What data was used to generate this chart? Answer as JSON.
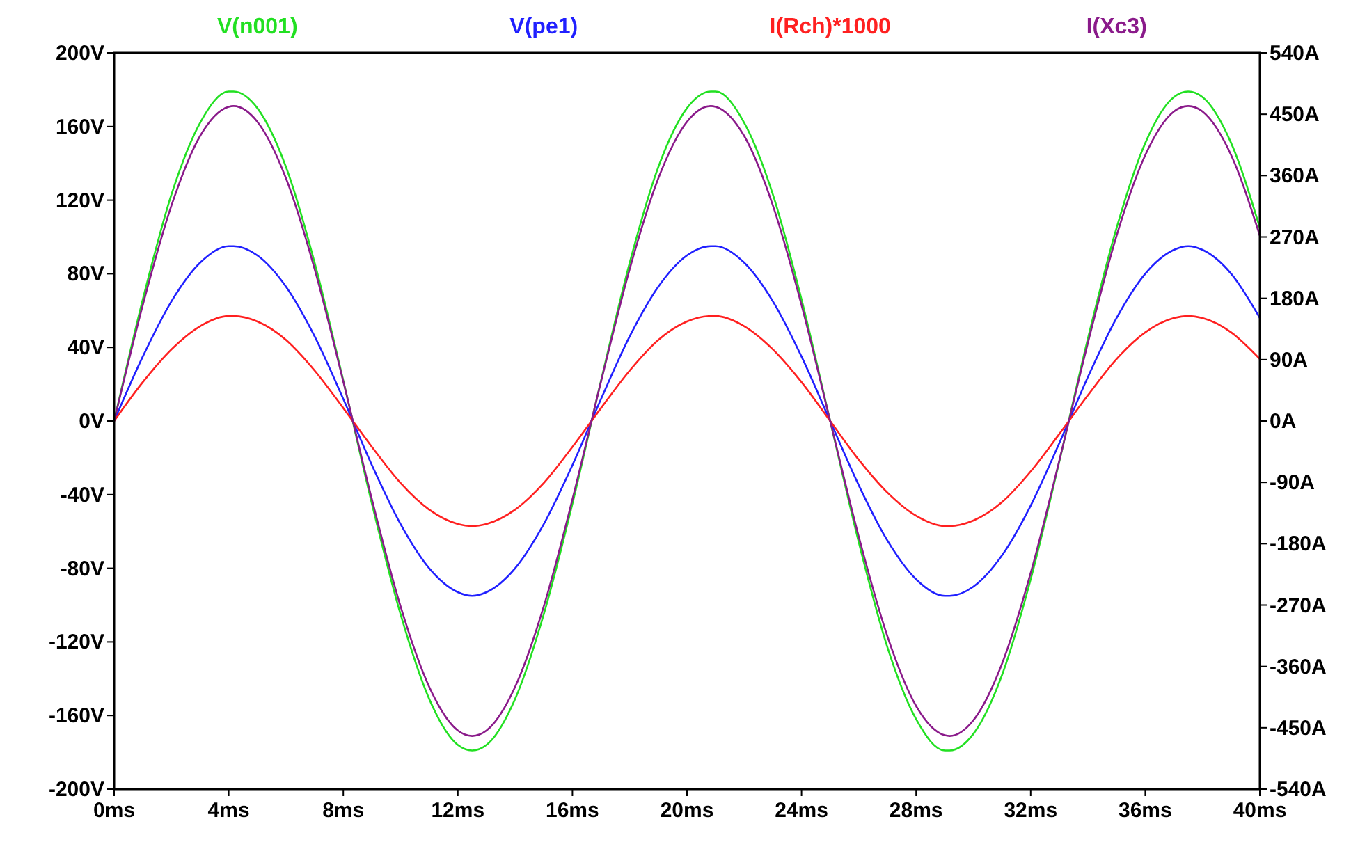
{
  "chart_data": {
    "type": "line",
    "x": [
      0,
      1,
      2,
      3,
      4,
      4.17,
      5,
      6,
      7,
      8,
      9,
      10,
      11,
      12,
      12.5,
      13,
      14,
      15,
      16,
      17,
      18,
      19,
      20,
      20.83,
      21,
      22,
      23,
      24,
      25,
      26,
      27,
      28,
      29,
      29.17,
      30,
      31,
      32,
      33,
      34,
      35,
      36,
      37,
      37.5,
      38,
      39,
      40
    ],
    "xlim": [
      0,
      40
    ],
    "xticks": [
      {
        "value": 0,
        "label": "0ms"
      },
      {
        "value": 4,
        "label": "4ms"
      },
      {
        "value": 8,
        "label": "8ms"
      },
      {
        "value": 12,
        "label": "12ms"
      },
      {
        "value": 16,
        "label": "16ms"
      },
      {
        "value": 20,
        "label": "20ms"
      },
      {
        "value": 24,
        "label": "24ms"
      },
      {
        "value": 28,
        "label": "28ms"
      },
      {
        "value": 32,
        "label": "32ms"
      },
      {
        "value": 36,
        "label": "36ms"
      },
      {
        "value": 40,
        "label": "40ms"
      }
    ],
    "ylim": [
      -200,
      200
    ],
    "yticks": [
      {
        "value": -200,
        "label": "-200V"
      },
      {
        "value": -160,
        "label": "-160V"
      },
      {
        "value": -120,
        "label": "-120V"
      },
      {
        "value": -80,
        "label": "-80V"
      },
      {
        "value": -40,
        "label": "-40V"
      },
      {
        "value": 0,
        "label": "0V"
      },
      {
        "value": 40,
        "label": "40V"
      },
      {
        "value": 80,
        "label": "80V"
      },
      {
        "value": 120,
        "label": "120V"
      },
      {
        "value": 160,
        "label": "160V"
      },
      {
        "value": 200,
        "label": "200V"
      }
    ],
    "y2lim": [
      -540,
      540
    ],
    "y2ticks": [
      {
        "value": -540,
        "label": "-540A"
      },
      {
        "value": -450,
        "label": "-450A"
      },
      {
        "value": -360,
        "label": "-360A"
      },
      {
        "value": -270,
        "label": "-270A"
      },
      {
        "value": -180,
        "label": "-180A"
      },
      {
        "value": -90,
        "label": "-90A"
      },
      {
        "value": 0,
        "label": "0A"
      },
      {
        "value": 90,
        "label": "90A"
      },
      {
        "value": 180,
        "label": "180A"
      },
      {
        "value": 270,
        "label": "270A"
      },
      {
        "value": 360,
        "label": "360A"
      },
      {
        "value": 450,
        "label": "450A"
      },
      {
        "value": 540,
        "label": "540A"
      }
    ],
    "grid": false,
    "legend": "top",
    "marker": "none",
    "line_style": "solid",
    "series": [
      {
        "name": "V(n001)",
        "color": "#22e022",
        "values": [
          0,
          66,
          123,
          162,
          179,
          179,
          170,
          138,
          86,
          22,
          -45,
          -105,
          -151,
          -176,
          -179,
          -176,
          -151,
          -105,
          -45,
          22,
          86,
          138,
          170,
          179,
          179,
          162,
          123,
          66,
          0,
          -66,
          -123,
          -162,
          -179,
          -179,
          -170,
          -138,
          -86,
          -22,
          45,
          105,
          151,
          176,
          179,
          176,
          151,
          105
        ]
      },
      {
        "name": "V(pe1)",
        "color": "#2020ff",
        "values": [
          0,
          35,
          65,
          86,
          95,
          95,
          90,
          73,
          46,
          12,
          -24,
          -56,
          -80,
          -93,
          -95,
          -93,
          -80,
          -56,
          -24,
          12,
          46,
          73,
          90,
          95,
          95,
          86,
          65,
          35,
          0,
          -35,
          -65,
          -86,
          -95,
          -95,
          -90,
          -73,
          -46,
          -12,
          24,
          56,
          80,
          93,
          95,
          93,
          80,
          56
        ]
      },
      {
        "name": "I(Rch)*1000",
        "color": "#ff2020",
        "axis": "y2",
        "values": [
          0,
          57,
          105,
          139,
          154,
          154,
          146,
          119,
          74,
          19,
          -38,
          -91,
          -130,
          -151,
          -154,
          -151,
          -130,
          -91,
          -38,
          19,
          74,
          119,
          146,
          154,
          154,
          139,
          105,
          57,
          0,
          -57,
          -105,
          -139,
          -154,
          -154,
          -146,
          -119,
          -74,
          -19,
          38,
          91,
          130,
          151,
          154,
          151,
          130,
          91
        ]
      },
      {
        "name": "I(Xc3)",
        "color": "#8a1a8a",
        "axis": "y2",
        "values": [
          0,
          170,
          316,
          418,
          461,
          462,
          439,
          356,
          223,
          58,
          -115,
          -272,
          -390,
          -454,
          -462,
          -454,
          -390,
          -272,
          -115,
          58,
          223,
          356,
          439,
          462,
          461,
          418,
          316,
          170,
          0,
          -170,
          -316,
          -418,
          -461,
          -462,
          -439,
          -356,
          -223,
          -58,
          115,
          272,
          390,
          454,
          462,
          454,
          390,
          272
        ]
      }
    ]
  }
}
